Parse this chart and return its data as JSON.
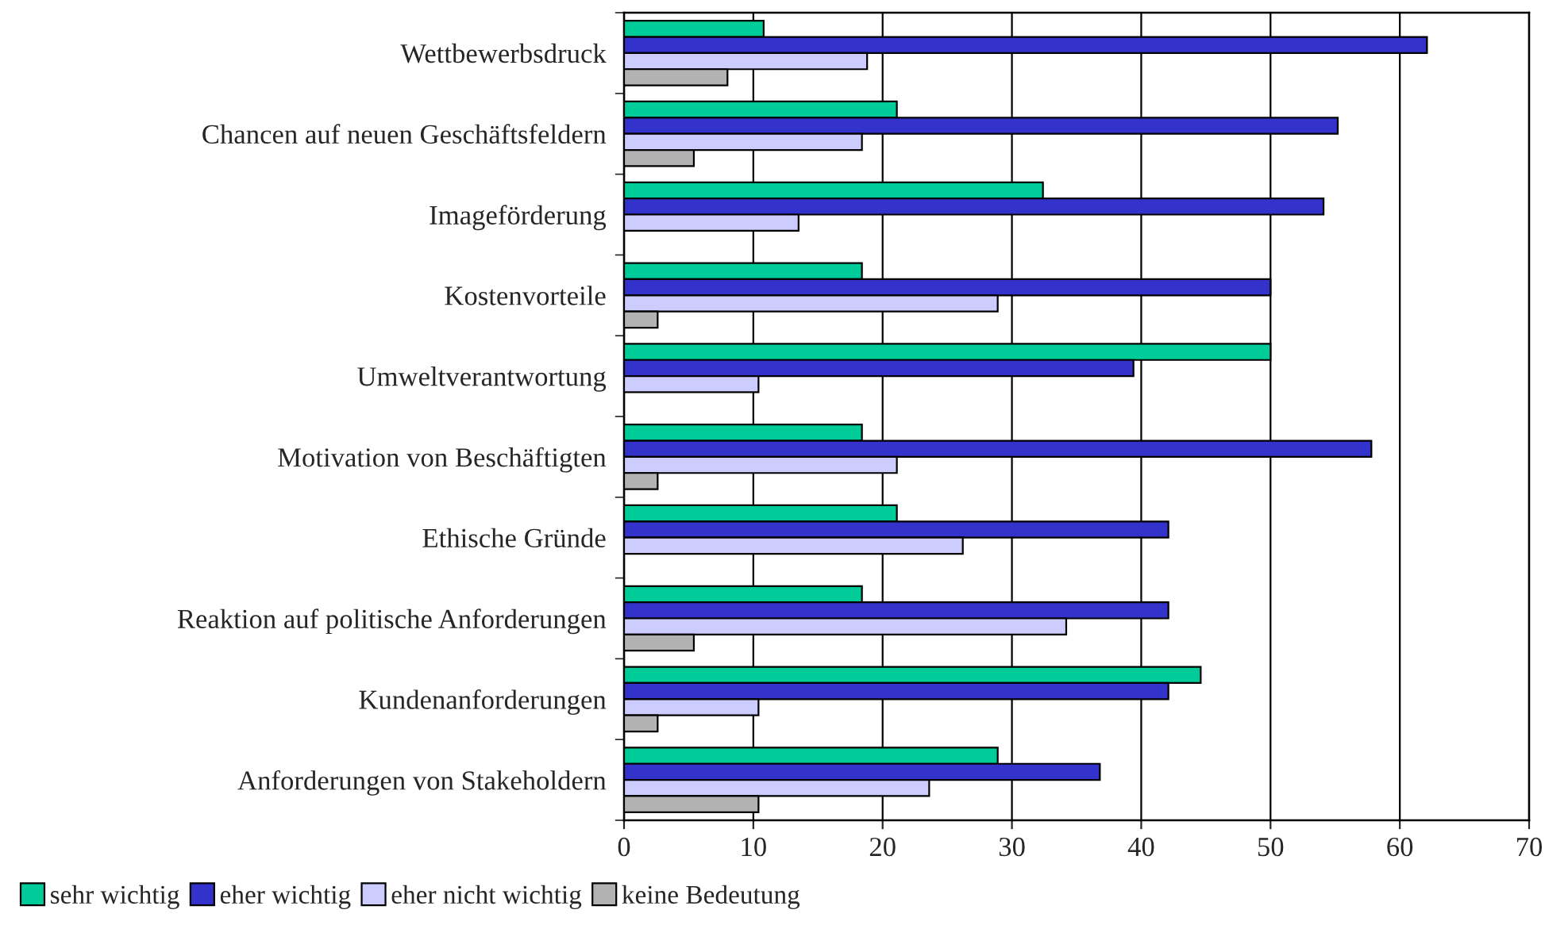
{
  "chart_data": {
    "type": "bar",
    "orientation": "horizontal",
    "categories": [
      "Wettbewerbsdruck",
      "Chancen auf neuen Geschäftsfeldern",
      "Imageförderung",
      "Kostenvorteile",
      "Umweltverantwortung",
      "Motivation von Beschäftigten",
      "Ethische Gründe",
      "Reaktion auf politische Anforderungen",
      "Kundenanforderungen",
      "Anforderungen von Stakeholdern"
    ],
    "series": [
      {
        "name": "sehr wichtig",
        "color": "#00cc99",
        "values": [
          10.8,
          21.1,
          32.4,
          18.4,
          50.0,
          18.4,
          21.1,
          18.4,
          44.6,
          28.9
        ]
      },
      {
        "name": "eher wichtig",
        "color": "#3333cc",
        "values": [
          62.1,
          55.2,
          54.1,
          50.0,
          39.4,
          57.8,
          42.1,
          42.1,
          42.1,
          36.8
        ]
      },
      {
        "name": "eher nicht wichtig",
        "color": "#ccccff",
        "values": [
          18.8,
          18.4,
          13.5,
          28.9,
          10.4,
          21.1,
          26.2,
          34.2,
          10.4,
          23.6
        ]
      },
      {
        "name": "keine Bedeutung",
        "color": "#b2b2b2",
        "values": [
          8.0,
          5.4,
          null,
          2.6,
          null,
          2.6,
          null,
          5.4,
          2.6,
          10.4
        ]
      }
    ],
    "xlim": [
      0,
      70
    ],
    "xticks": [
      0,
      10,
      20,
      30,
      40,
      50,
      60,
      70
    ],
    "grid": "x",
    "legend": "bottom"
  }
}
